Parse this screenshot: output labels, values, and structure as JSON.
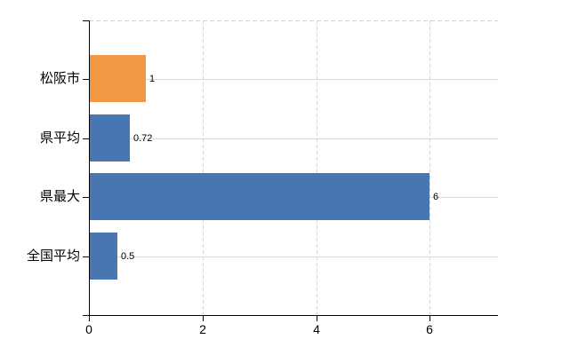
{
  "chart_data": {
    "type": "bar",
    "orientation": "horizontal",
    "title": "",
    "xlabel": "",
    "ylabel": "",
    "categories": [
      "松阪市",
      "県平均",
      "県最大",
      "全国平均"
    ],
    "values": [
      1,
      0.72,
      6,
      0.5
    ],
    "value_labels": [
      "1",
      "0.72",
      "6",
      "0.5"
    ],
    "bar_colors": [
      "#F29742",
      "#4876B3",
      "#4876B3",
      "#4876B3"
    ],
    "highlight_color": "#F29742",
    "series_color": "#4876B3",
    "xlim": [
      0,
      7.2
    ],
    "xticks": [
      0,
      2,
      4,
      6
    ],
    "xtick_labels": [
      "0",
      "2",
      "4",
      "6"
    ],
    "grid": true,
    "legend": false
  },
  "style": {
    "background": "#FFFFFF",
    "axis_color": "#000000",
    "text_color": "#000000",
    "h_grid_color": "#d7dcd3",
    "v_grid_color": "#d8d4db",
    "top_border_color": "#d2d2d2"
  }
}
